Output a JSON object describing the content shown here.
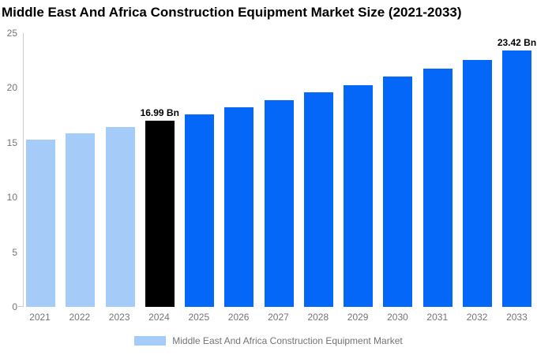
{
  "title": "Middle East And Africa Construction Equipment Market Size (2021-2033)",
  "chart_data": {
    "type": "bar",
    "title": "Middle East And Africa Construction Equipment Market Size (2021-2033)",
    "categories": [
      "2021",
      "2022",
      "2023",
      "2024",
      "2025",
      "2026",
      "2027",
      "2028",
      "2029",
      "2030",
      "2031",
      "2032",
      "2033"
    ],
    "values": [
      15.27,
      15.82,
      16.4,
      16.99,
      17.61,
      18.24,
      18.89,
      19.57,
      20.28,
      21.01,
      21.77,
      22.55,
      23.42
    ],
    "unit": "Bn",
    "xlabel": "",
    "ylabel": "",
    "ylim": [
      0,
      25
    ],
    "yticks": [
      0,
      5,
      10,
      15,
      20,
      25
    ],
    "grid": false,
    "bar_roles": [
      "historical",
      "historical",
      "historical",
      "highlight",
      "forecast",
      "forecast",
      "forecast",
      "forecast",
      "forecast",
      "forecast",
      "forecast",
      "forecast",
      "forecast"
    ],
    "colors": {
      "historical": "#A5CBF8",
      "highlight": "#000000",
      "forecast": "#0567F7",
      "axis_line": "#CCCCCC",
      "tick_text": "#737373",
      "annotation_text": "#000000"
    },
    "annotations": [
      {
        "category": "2024",
        "text": "16.99 Bn"
      },
      {
        "category": "2033",
        "text": "23.42 Bn"
      }
    ],
    "legend": {
      "position": "bottom-center",
      "label": "Middle East And Africa Construction Equipment Market",
      "swatch_color": "#A5CBF8"
    }
  }
}
